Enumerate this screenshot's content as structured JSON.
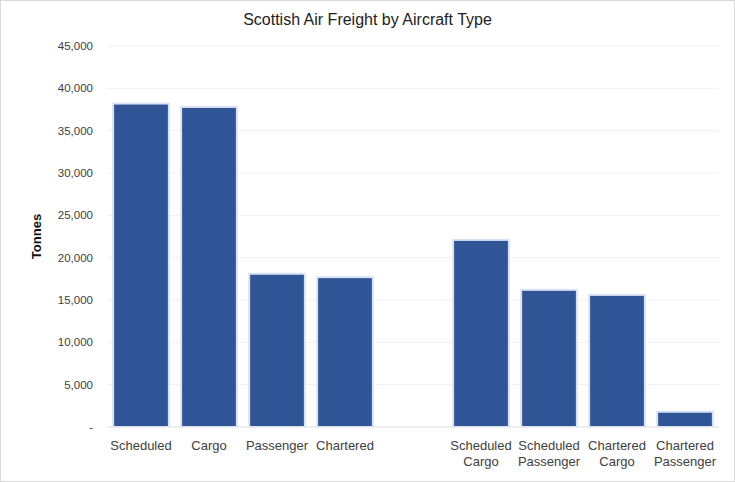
{
  "chart_data": {
    "type": "bar",
    "title": "Scottish Air Freight by Aircraft Type",
    "y_label": "Tonnes",
    "categories": [
      "Scheduled",
      "Cargo",
      "Passenger",
      "Chartered",
      null,
      "Scheduled Cargo",
      "Scheduled Passenger",
      "Chartered Cargo",
      "Chartered Passenger"
    ],
    "values": [
      38200,
      37800,
      18100,
      17700,
      null,
      22100,
      16200,
      15600,
      1800
    ],
    "color": "#2f5597",
    "ylim": [
      0,
      45000
    ],
    "yticks": [
      {
        "value": 0,
        "label": "-"
      },
      {
        "value": 5000,
        "label": "5,000"
      },
      {
        "value": 10000,
        "label": "10,000"
      },
      {
        "value": 15000,
        "label": "15,000"
      },
      {
        "value": 20000,
        "label": "20,000"
      },
      {
        "value": 25000,
        "label": "25,000"
      },
      {
        "value": 30000,
        "label": "30,000"
      },
      {
        "value": 35000,
        "label": "35,000"
      },
      {
        "value": 40000,
        "label": "40,000"
      },
      {
        "value": 45000,
        "label": "45,000"
      }
    ],
    "grid": true
  }
}
